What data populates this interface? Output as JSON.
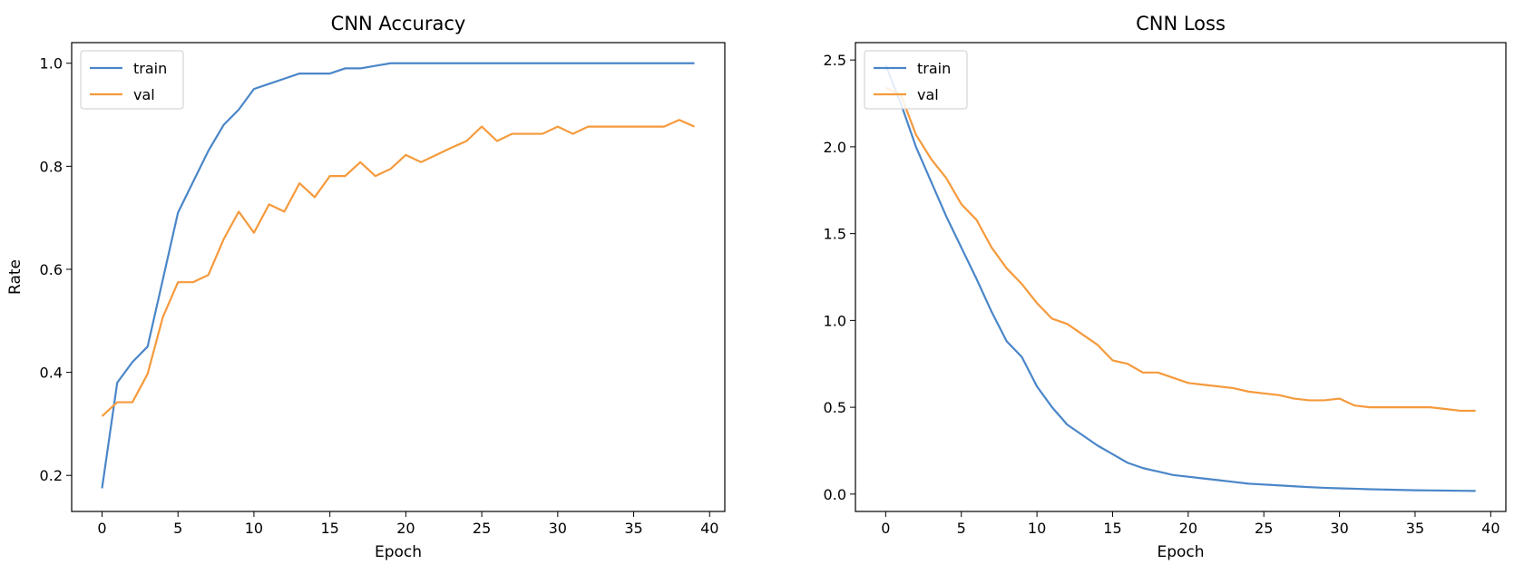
{
  "chart_data": [
    {
      "type": "line",
      "title": "CNN Accuracy",
      "xlabel": "Epoch",
      "ylabel": "Rate",
      "xlim": [
        -2,
        41
      ],
      "ylim": [
        0.13,
        1.04
      ],
      "xticks": [
        0,
        5,
        10,
        15,
        20,
        25,
        30,
        35,
        40
      ],
      "yticks": [
        0.2,
        0.4,
        0.6,
        0.8,
        1.0
      ],
      "ytick_labels": [
        "0.2",
        "0.4",
        "0.6",
        "0.8",
        "1.0"
      ],
      "grid": false,
      "legend_position": "top-left",
      "x": [
        0,
        1,
        2,
        3,
        4,
        5,
        6,
        7,
        8,
        9,
        10,
        11,
        12,
        13,
        14,
        15,
        16,
        17,
        18,
        19,
        20,
        21,
        22,
        23,
        24,
        25,
        26,
        27,
        28,
        29,
        30,
        31,
        32,
        33,
        34,
        35,
        36,
        37,
        38,
        39
      ],
      "series": [
        {
          "name": "train",
          "color": "#4a86c8",
          "values": [
            0.175,
            0.38,
            0.42,
            0.45,
            0.58,
            0.71,
            0.77,
            0.83,
            0.88,
            0.91,
            0.95,
            0.96,
            0.97,
            0.98,
            0.98,
            0.98,
            0.99,
            0.99,
            0.995,
            1.0,
            1.0,
            1.0,
            1.0,
            1.0,
            1.0,
            1.0,
            1.0,
            1.0,
            1.0,
            1.0,
            1.0,
            1.0,
            1.0,
            1.0,
            1.0,
            1.0,
            1.0,
            1.0,
            1.0,
            1.0
          ]
        },
        {
          "name": "val",
          "color": "#f59a3c",
          "values": [
            0.315,
            0.342,
            0.342,
            0.397,
            0.507,
            0.575,
            0.575,
            0.589,
            0.658,
            0.712,
            0.671,
            0.726,
            0.712,
            0.767,
            0.74,
            0.781,
            0.781,
            0.808,
            0.781,
            0.795,
            0.822,
            0.808,
            0.822,
            0.836,
            0.849,
            0.877,
            0.849,
            0.863,
            0.863,
            0.863,
            0.877,
            0.863,
            0.877,
            0.877,
            0.877,
            0.877,
            0.877,
            0.877,
            0.89,
            0.877
          ]
        }
      ]
    },
    {
      "type": "line",
      "title": "CNN Loss",
      "xlabel": "Epoch",
      "ylabel": "",
      "xlim": [
        -2,
        41
      ],
      "ylim": [
        -0.1,
        2.6
      ],
      "xticks": [
        0,
        5,
        10,
        15,
        20,
        25,
        30,
        35,
        40
      ],
      "yticks": [
        0.0,
        0.5,
        1.0,
        1.5,
        2.0,
        2.5
      ],
      "ytick_labels": [
        "0.0",
        "0.5",
        "1.0",
        "1.5",
        "2.0",
        "2.5"
      ],
      "grid": false,
      "legend_position": "top-left",
      "x": [
        0,
        1,
        2,
        3,
        4,
        5,
        6,
        7,
        8,
        9,
        10,
        11,
        12,
        13,
        14,
        15,
        16,
        17,
        18,
        19,
        20,
        21,
        22,
        23,
        24,
        25,
        26,
        27,
        28,
        29,
        30,
        31,
        32,
        33,
        34,
        35,
        36,
        37,
        38,
        39
      ],
      "series": [
        {
          "name": "train",
          "color": "#4a86c8",
          "values": [
            2.47,
            2.25,
            2.0,
            1.8,
            1.6,
            1.42,
            1.24,
            1.05,
            0.88,
            0.79,
            0.62,
            0.5,
            0.4,
            0.34,
            0.28,
            0.23,
            0.18,
            0.15,
            0.13,
            0.11,
            0.1,
            0.09,
            0.08,
            0.07,
            0.06,
            0.055,
            0.05,
            0.045,
            0.04,
            0.036,
            0.033,
            0.031,
            0.028,
            0.026,
            0.024,
            0.022,
            0.021,
            0.02,
            0.019,
            0.018
          ]
        },
        {
          "name": "val",
          "color": "#f59a3c",
          "values": [
            2.34,
            2.3,
            2.07,
            1.93,
            1.82,
            1.67,
            1.58,
            1.42,
            1.3,
            1.21,
            1.1,
            1.01,
            0.98,
            0.92,
            0.86,
            0.77,
            0.75,
            0.7,
            0.7,
            0.67,
            0.64,
            0.63,
            0.62,
            0.61,
            0.59,
            0.58,
            0.57,
            0.55,
            0.54,
            0.54,
            0.55,
            0.51,
            0.5,
            0.5,
            0.5,
            0.5,
            0.5,
            0.49,
            0.48,
            0.48
          ]
        }
      ]
    }
  ]
}
